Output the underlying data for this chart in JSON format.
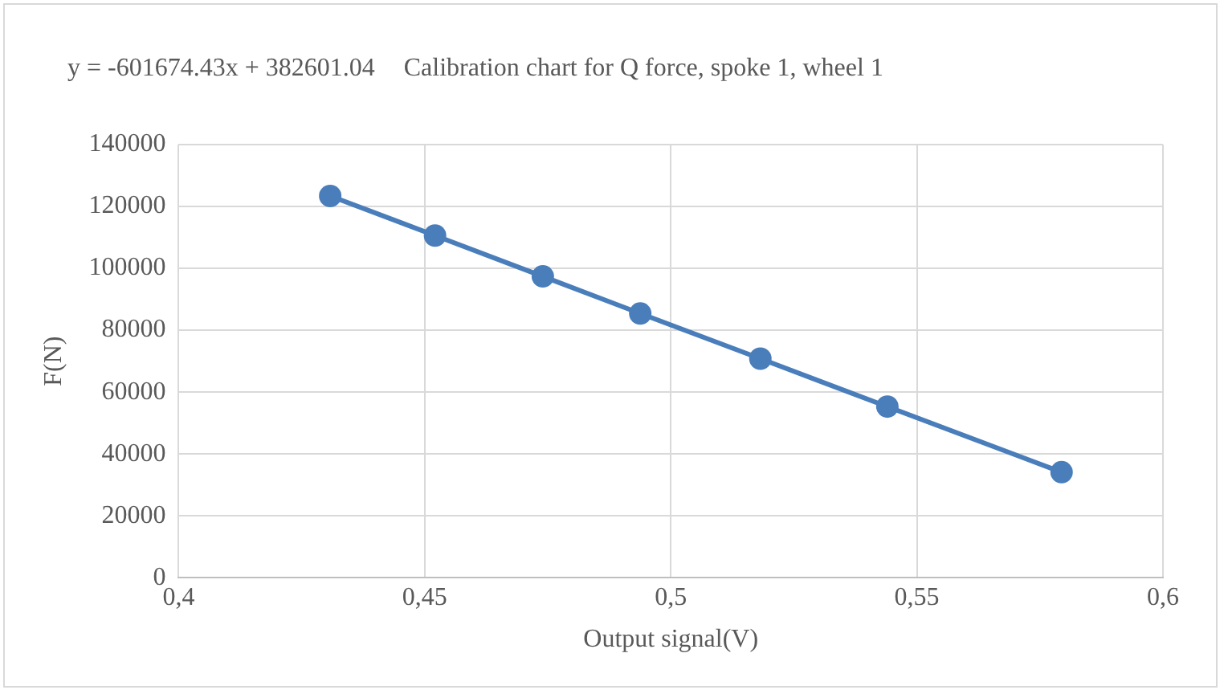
{
  "chart_data": {
    "type": "line",
    "title": "Calibration chart for Q force, spoke 1, wheel 1",
    "annotations": [
      "y = -601674.43x + 382601.04"
    ],
    "xlabel": "Output signal(V)",
    "ylabel": "F(N)",
    "x": [
      0.4308,
      0.4521,
      0.474,
      0.4938,
      0.5182,
      0.544,
      0.5794
    ],
    "series": [
      {
        "color": "#4a7ebb",
        "values": [
          123400,
          110600,
          97400,
          85400,
          70800,
          55300,
          34100
        ]
      }
    ],
    "xlim": [
      0.4,
      0.6
    ],
    "xticks": [
      {
        "value": 0.4,
        "label": "0,4"
      },
      {
        "value": 0.45,
        "label": "0,45"
      },
      {
        "value": 0.5,
        "label": "0,5"
      },
      {
        "value": 0.55,
        "label": "0,55"
      },
      {
        "value": 0.6,
        "label": "0,6"
      }
    ],
    "ylim": [
      0,
      140000
    ],
    "yticks": [
      0,
      20000,
      40000,
      60000,
      80000,
      100000,
      120000,
      140000
    ],
    "grid": true,
    "marker": "circle",
    "line_style": "solid"
  }
}
